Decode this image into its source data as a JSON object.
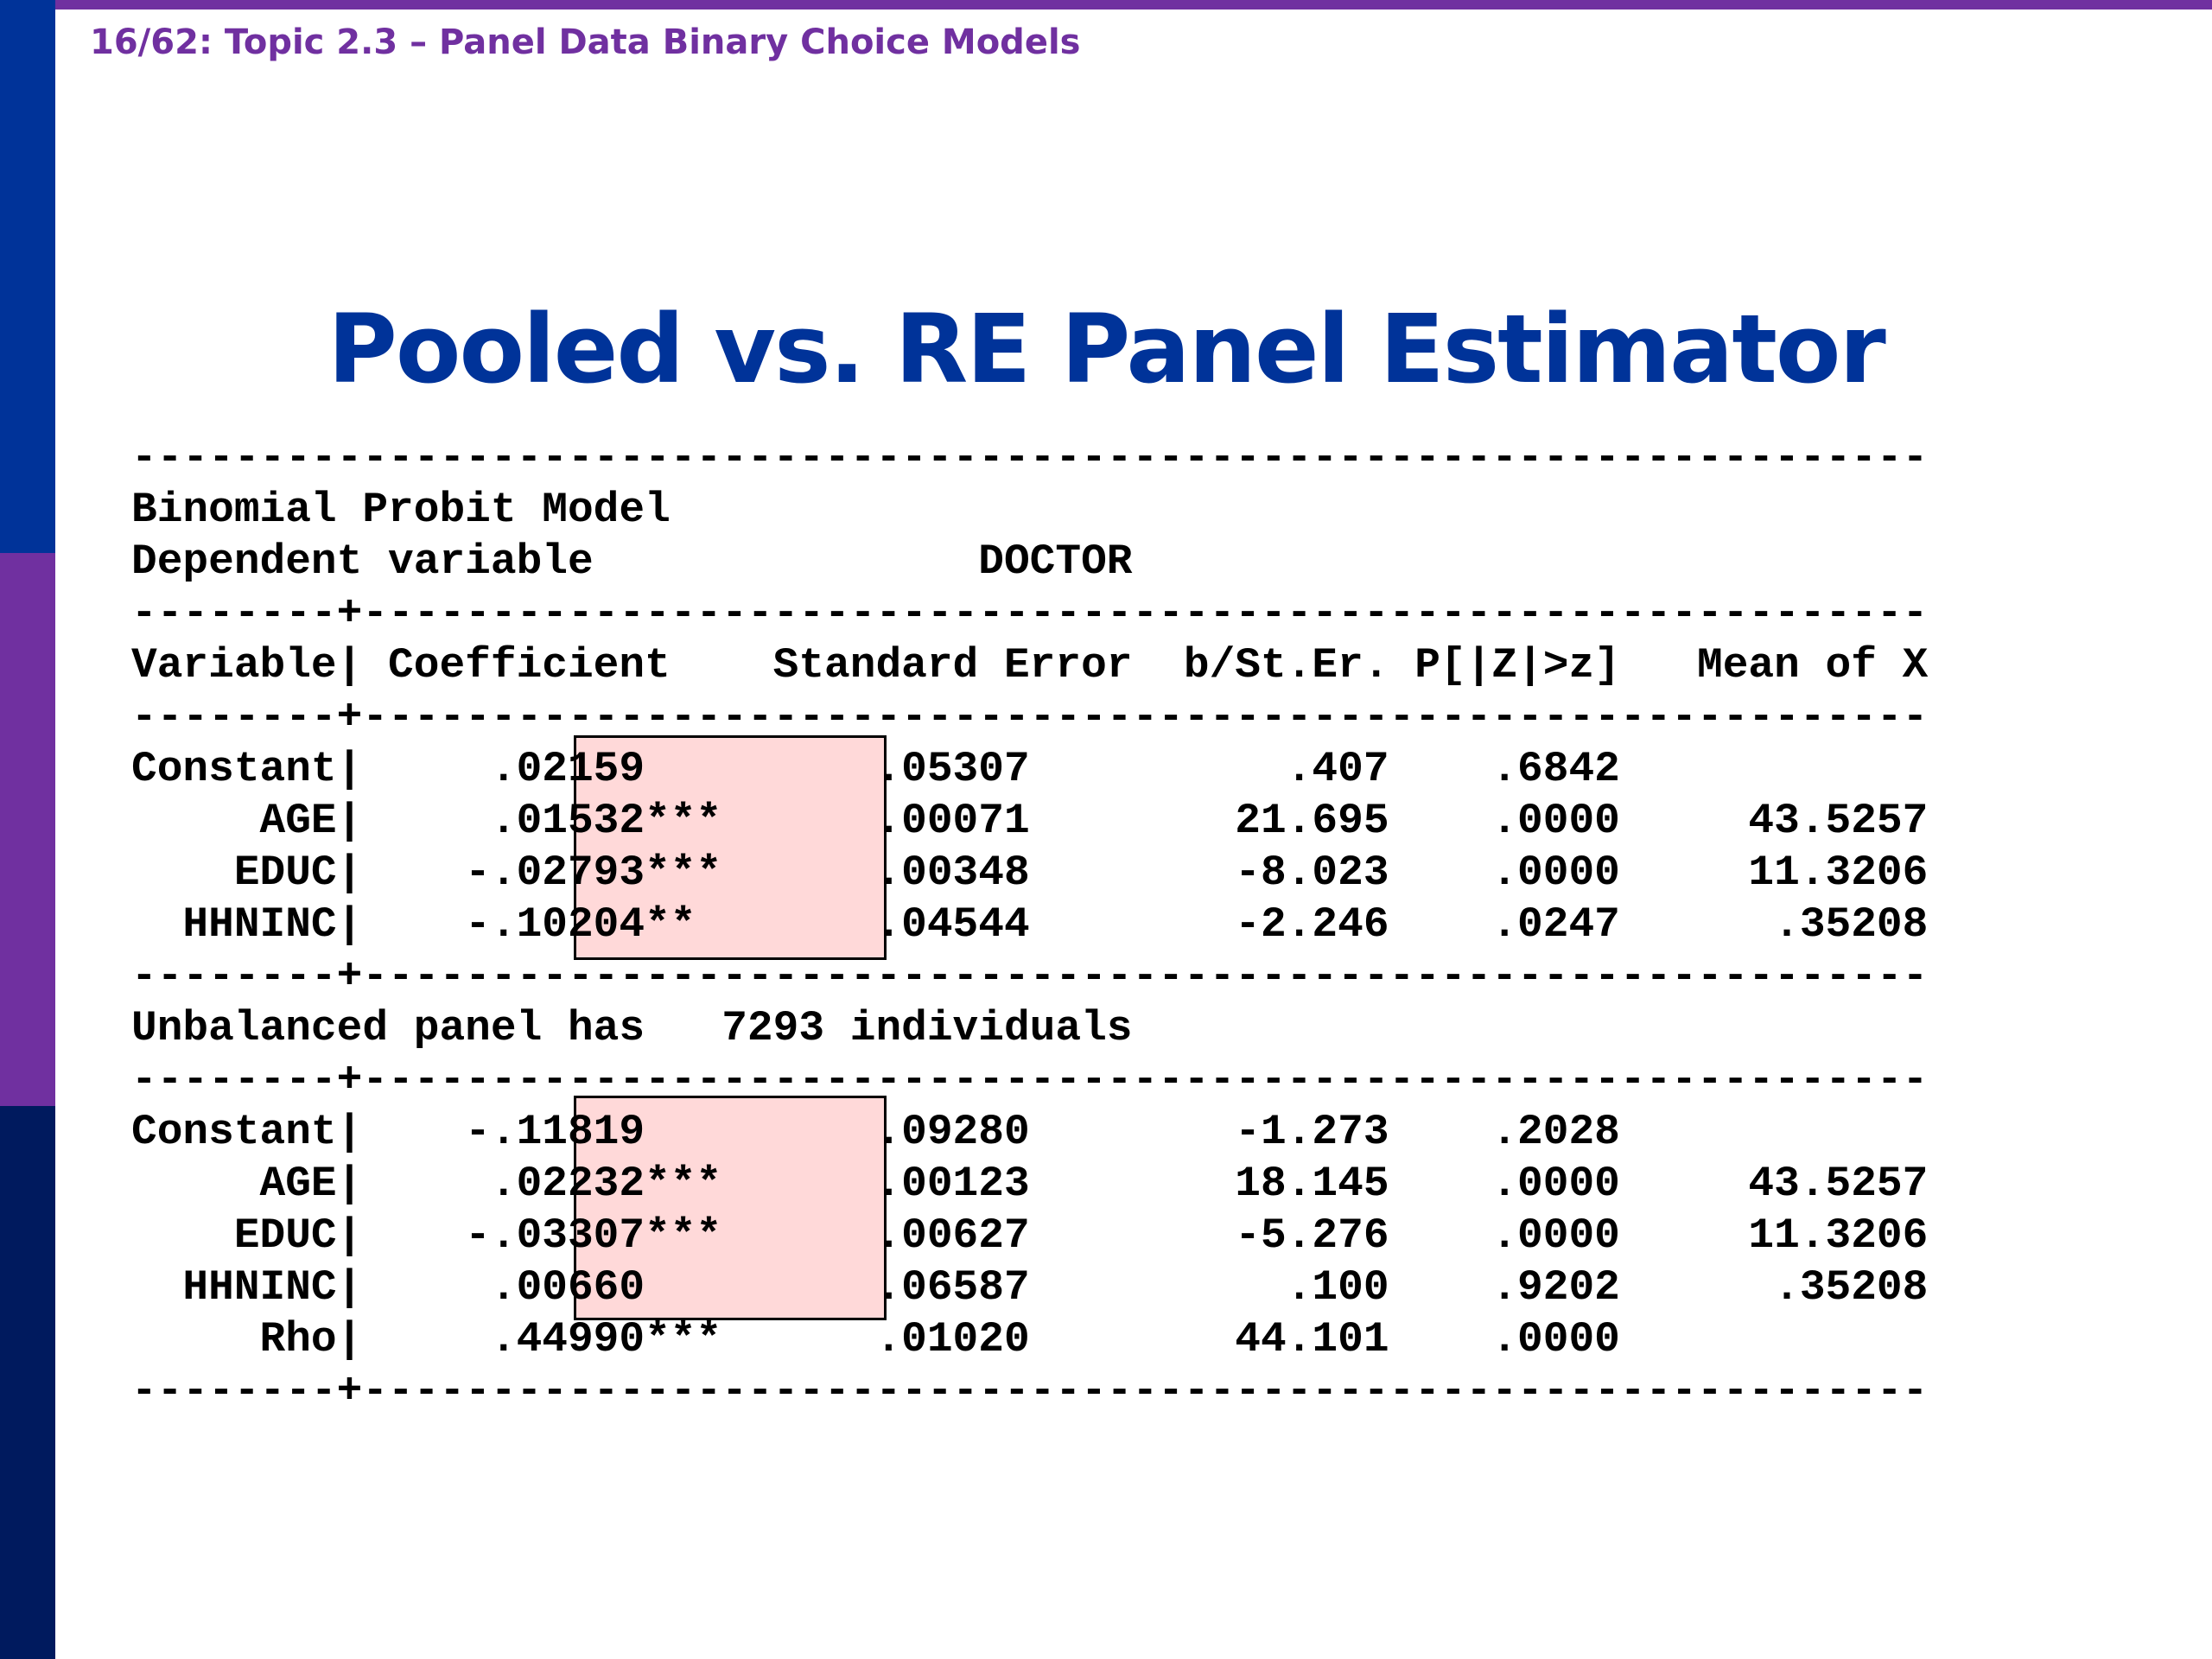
{
  "header": "16/62: Topic 2.3 – Panel Data Binary Choice Models",
  "title": "Pooled vs.  RE Panel Estimator",
  "output_lines": [
    "----------------------------------------------------------------------",
    "Binomial Probit Model",
    "Dependent variable               DOCTOR",
    "--------+-------------------------------------------------------------",
    "Variable| Coefficient    Standard Error  b/St.Er. P[|Z|>z]   Mean of X",
    "--------+-------------------------------------------------------------",
    "Constant|     .02159         .05307          .407    .6842",
    "     AGE|     .01532***      .00071        21.695    .0000     43.5257",
    "    EDUC|    -.02793***      .00348        -8.023    .0000     11.3206",
    "  HHNINC|    -.10204**       .04544        -2.246    .0247      .35208",
    "--------+-------------------------------------------------------------",
    "Unbalanced panel has   7293 individuals",
    "--------+-------------------------------------------------------------",
    "Constant|    -.11819         .09280        -1.273    .2028",
    "     AGE|     .02232***      .00123        18.145    .0000     43.5257",
    "    EDUC|    -.03307***      .00627        -5.276    .0000     11.3206",
    "  HHNINC|     .00660         .06587          .100    .9202      .35208",
    "     Rho|     .44990***      .01020        44.101    .0000",
    "--------+-------------------------------------------------------------"
  ],
  "colors": {
    "title": "#003399",
    "header": "#7030a0",
    "highlight": "#ffd9d9",
    "side_bar": [
      "#003399",
      "#7030a0",
      "#001a5e"
    ]
  }
}
